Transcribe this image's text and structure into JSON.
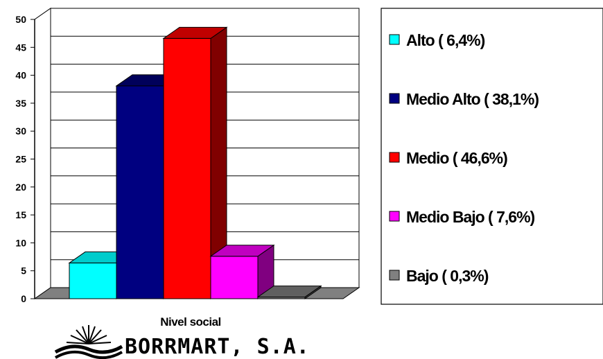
{
  "chart_data": {
    "type": "bar",
    "xlabel": "Nivel social",
    "categories": [
      "Nivel social"
    ],
    "ylim": [
      0,
      50
    ],
    "yticks": [
      0,
      5,
      10,
      15,
      20,
      25,
      30,
      35,
      40,
      45,
      50
    ],
    "grid": true,
    "three_d": true,
    "legend_position": "right",
    "series": [
      {
        "name": "Alto ( 6,4%)",
        "value": 6.4,
        "color": "#00ffff",
        "side_color": "#00b2b2",
        "top_color": "#00cccc"
      },
      {
        "name": "Medio Alto ( 38,1%)",
        "value": 38.1,
        "color": "#000080",
        "side_color": "#000040",
        "top_color": "#00005a"
      },
      {
        "name": "Medio ( 46,6%)",
        "value": 46.6,
        "color": "#ff0000",
        "side_color": "#800000",
        "top_color": "#c00000"
      },
      {
        "name": "Medio Bajo ( 7,6%)",
        "value": 7.6,
        "color": "#ff00ff",
        "side_color": "#800080",
        "top_color": "#c000c0"
      },
      {
        "name": "Bajo ( 0,3%)",
        "value": 0.3,
        "color": "#808080",
        "side_color": "#404040",
        "top_color": "#606060"
      }
    ]
  },
  "logo": {
    "text": "BORRMART, S.A.",
    "icon": "sunburst-wave-icon"
  }
}
